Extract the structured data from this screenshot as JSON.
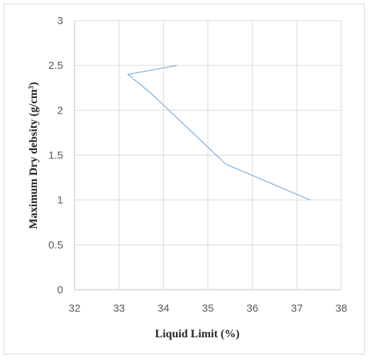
{
  "chart_data": {
    "type": "line",
    "title": "",
    "xlabel": "Liquid Limit (%)",
    "ylabel_main": "Maximum Dry debsity  (g/cm",
    "ylabel_sup": "3",
    "ylabel_end": ")",
    "xlim": [
      32,
      38
    ],
    "ylim": [
      0,
      3
    ],
    "x_ticks": [
      "32",
      "33",
      "34",
      "35",
      "36",
      "37",
      "38"
    ],
    "y_ticks": [
      "0",
      "0.5",
      "1",
      "1.5",
      "2",
      "2.5",
      "3"
    ],
    "grid": true,
    "legend": "none",
    "series": [
      {
        "color": "#5b9bd5",
        "x": [
          34.3,
          33.2,
          33.7,
          35.4,
          37.3
        ],
        "y": [
          2.5,
          2.4,
          2.2,
          1.4,
          1.0
        ]
      }
    ]
  },
  "colors": {
    "grid": "#d9d9d9",
    "axis": "#bfbfbf",
    "line": "#5b9bd5"
  }
}
